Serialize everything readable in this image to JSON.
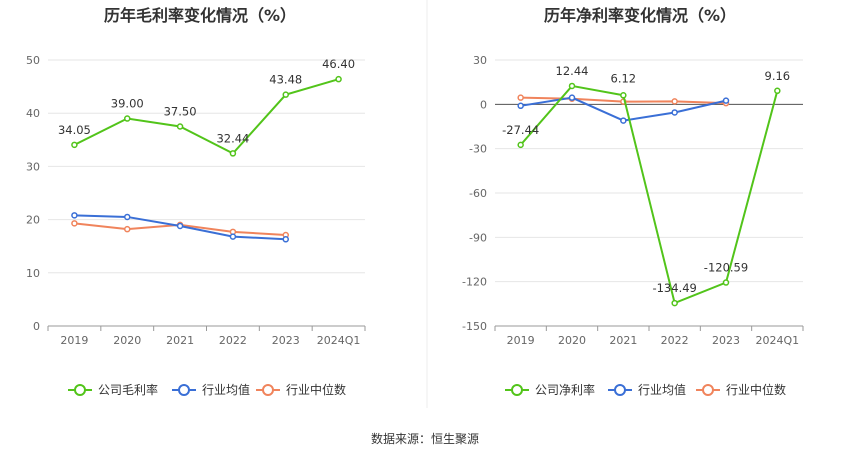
{
  "chart_data": [
    {
      "type": "line",
      "title": "历年毛利率变化情况（%）",
      "categories": [
        "2019",
        "2020",
        "2021",
        "2022",
        "2023",
        "2024Q1"
      ],
      "ylim": [
        0,
        50
      ],
      "yticks": [
        0,
        10,
        20,
        30,
        40,
        50
      ],
      "grid": true,
      "legend_position": "bottom",
      "series": [
        {
          "name": "公司毛利率",
          "color": "#52c41a",
          "values": [
            34.05,
            39.0,
            37.5,
            32.44,
            43.48,
            46.4
          ],
          "labels": [
            "34.05",
            "39.00",
            "37.50",
            "32.44",
            "43.48",
            "46.40"
          ]
        },
        {
          "name": "行业均值",
          "color": "#3a6fd6",
          "values": [
            20.8,
            20.5,
            18.8,
            16.8,
            16.3,
            null
          ]
        },
        {
          "name": "行业中位数",
          "color": "#f0845c",
          "values": [
            19.3,
            18.2,
            19.0,
            17.7,
            17.1,
            null
          ]
        }
      ]
    },
    {
      "type": "line",
      "title": "历年净利率变化情况（%）",
      "categories": [
        "2019",
        "2020",
        "2021",
        "2022",
        "2023",
        "2024Q1"
      ],
      "ylim": [
        -150,
        30
      ],
      "yticks": [
        30,
        0,
        -30,
        -60,
        -90,
        -120,
        -150
      ],
      "grid": true,
      "legend_position": "bottom",
      "series": [
        {
          "name": "公司净利率",
          "color": "#52c41a",
          "values": [
            -27.44,
            12.44,
            6.12,
            -134.49,
            -120.59,
            9.16
          ],
          "labels": [
            "-27.44",
            "12.44",
            "6.12",
            "-134.49",
            "-120.59",
            "9.16"
          ]
        },
        {
          "name": "行业均值",
          "color": "#3a6fd6",
          "values": [
            -1.0,
            4.5,
            -11.0,
            -5.5,
            2.5,
            null
          ]
        },
        {
          "name": "行业中位数",
          "color": "#f0845c",
          "values": [
            4.5,
            3.8,
            1.8,
            2.0,
            0.8,
            null
          ]
        }
      ]
    }
  ],
  "source_text": "数据来源：恒生聚源"
}
